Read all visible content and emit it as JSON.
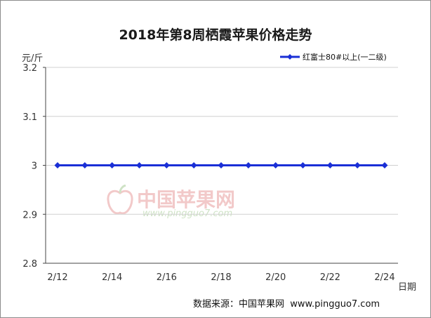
{
  "chart_data": {
    "type": "line",
    "title": "2018年第8周栖霞苹果价格走势",
    "ylabel": "元/斤",
    "xlabel": "日期",
    "ylim": [
      2.8,
      3.2
    ],
    "yticks": [
      "3.2",
      "3.1",
      "3",
      "2.9",
      "2.8"
    ],
    "x": [
      "2/12",
      "2/13",
      "2/14",
      "2/15",
      "2/16",
      "2/17",
      "2/18",
      "2/19",
      "2/20",
      "2/21",
      "2/22",
      "2/23",
      "2/24"
    ],
    "xtick_labels": [
      "2/12",
      "2/14",
      "2/16",
      "2/18",
      "2/20",
      "2/22",
      "2/24"
    ],
    "series": [
      {
        "name": "红富士80#以上(一二级)",
        "color": "#1a2fd6",
        "values": [
          3,
          3,
          3,
          3,
          3,
          3,
          3,
          3,
          3,
          3,
          3,
          3,
          3
        ]
      }
    ],
    "grid": "horizontal",
    "legend_position": "top-right"
  },
  "source": "数据来源：中国苹果网  www.pingguo7.com",
  "watermark": {
    "brand": "中国苹果网",
    "url": "www.pingguo7.com"
  },
  "colors": {
    "series": "#1a2fd6",
    "axis": "#444444",
    "grid": "#d0d0d0"
  }
}
